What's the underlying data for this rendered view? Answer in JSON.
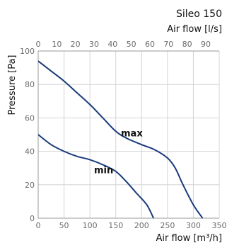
{
  "chart_data": {
    "type": "line",
    "title": "Sileo 150",
    "xlabel": "Air flow [m³/h]",
    "x2label": "Air flow [l/s]",
    "ylabel": "Pressure [Pa]",
    "xlim": [
      0,
      350
    ],
    "ylim": [
      0,
      100
    ],
    "x2lim": [
      0,
      97.2222
    ],
    "xticks": [
      "0",
      "50",
      "100",
      "150",
      "200",
      "250",
      "300",
      "350"
    ],
    "x2ticks": [
      "0",
      "10",
      "20",
      "30",
      "40",
      "50",
      "60",
      "70",
      "80",
      "90"
    ],
    "yticks": [
      "0",
      "20",
      "40",
      "60",
      "80",
      "100"
    ],
    "grid": true,
    "series": [
      {
        "name": "max",
        "x": [
          0,
          25,
          50,
          75,
          100,
          125,
          150,
          170,
          200,
          225,
          250,
          265,
          280,
          300,
          318
        ],
        "y": [
          94,
          88,
          82,
          75,
          68,
          60,
          52,
          48,
          44,
          41,
          36,
          30,
          20,
          8,
          0
        ]
      },
      {
        "name": "min",
        "x": [
          0,
          25,
          50,
          75,
          100,
          125,
          150,
          170,
          190,
          210,
          223
        ],
        "y": [
          50,
          44,
          40,
          37,
          35,
          32,
          28,
          22,
          15,
          8,
          0
        ]
      }
    ]
  }
}
